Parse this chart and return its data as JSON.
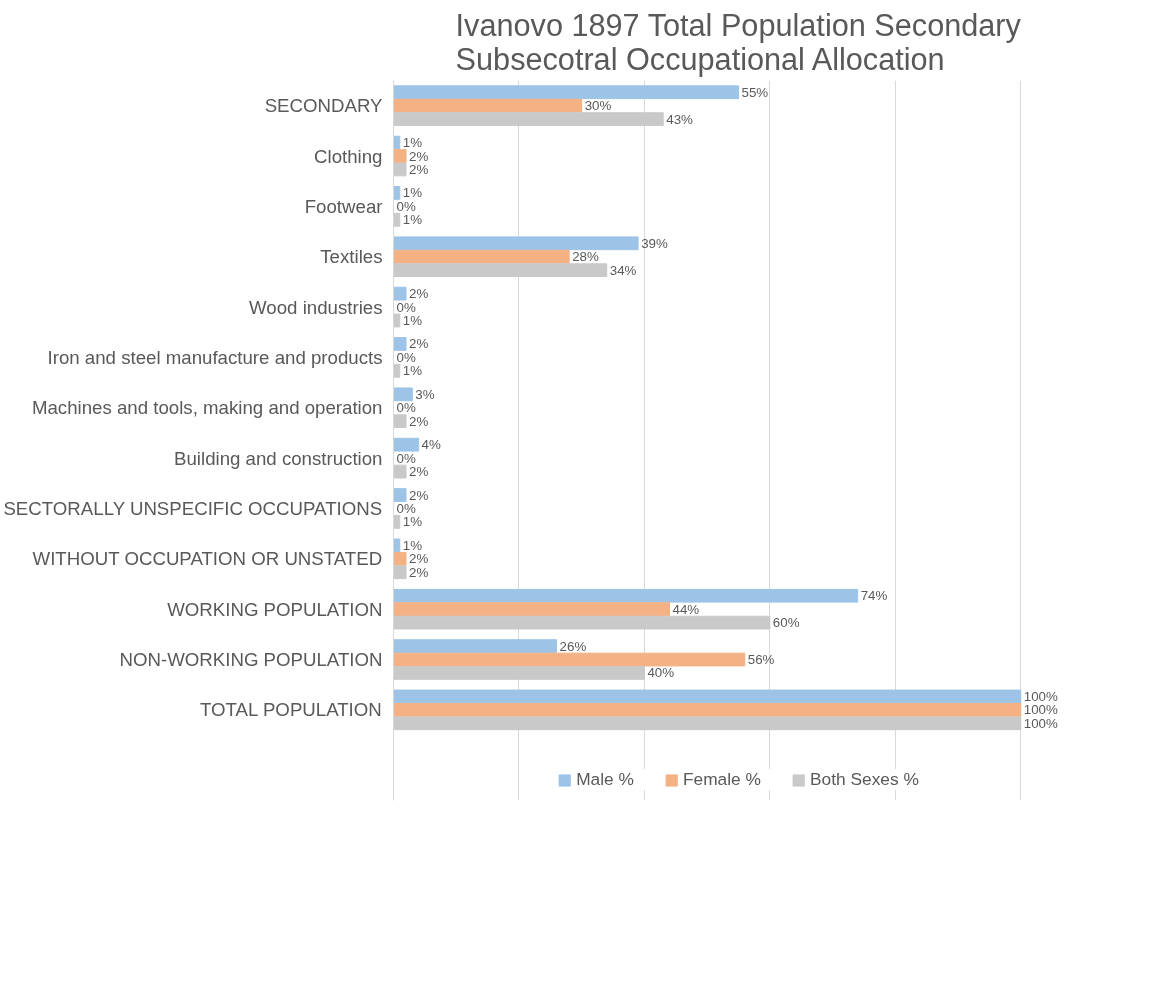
{
  "chart_data": {
    "type": "bar",
    "orientation": "horizontal",
    "title": "Ivanovo 1897 Total Population Secondary Subsecotral Occupational Allocation",
    "categories": [
      "SECONDARY",
      "Clothing",
      "Footwear",
      "Textiles",
      "Wood industries",
      "Iron and steel manufacture and products",
      "Machines and tools, making and operation",
      "Building and construction",
      "SECTORALLY UNSPECIFIC OCCUPATIONS",
      "WITHOUT OCCUPATION OR UNSTATED",
      "WORKING POPULATION",
      "NON-WORKING POPULATION",
      "TOTAL POPULATION"
    ],
    "series": [
      {
        "name": "Male %",
        "color": "#9dc3e6",
        "values": [
          55,
          1,
          1,
          39,
          2,
          2,
          3,
          4,
          2,
          1,
          74,
          26,
          100
        ],
        "value_labels": [
          "55%",
          "1%",
          "1%",
          "39%",
          "2%",
          "2%",
          "3%",
          "4%",
          "2%",
          "1%",
          "74%",
          "26%",
          "100%"
        ]
      },
      {
        "name": "Female %",
        "color": "#f4b183",
        "values": [
          30,
          2,
          0,
          28,
          0,
          0,
          0,
          0,
          0,
          2,
          44,
          56,
          100
        ],
        "value_labels": [
          "30%",
          "2%",
          "0%",
          "28%",
          "0%",
          "0%",
          "0%",
          "0%",
          "0%",
          "2%",
          "44%",
          "56%",
          "100%"
        ]
      },
      {
        "name": "Both Sexes %",
        "color": "#c9c9c9",
        "values": [
          43,
          2,
          1,
          34,
          1,
          1,
          2,
          2,
          1,
          2,
          60,
          40,
          100
        ],
        "value_labels": [
          "43%",
          "2%",
          "1%",
          "34%",
          "1%",
          "1%",
          "2%",
          "2%",
          "1%",
          "2%",
          "60%",
          "40%",
          "100%"
        ]
      }
    ],
    "grid": "x",
    "tick_labels": "y",
    "legend": "bottom"
  }
}
